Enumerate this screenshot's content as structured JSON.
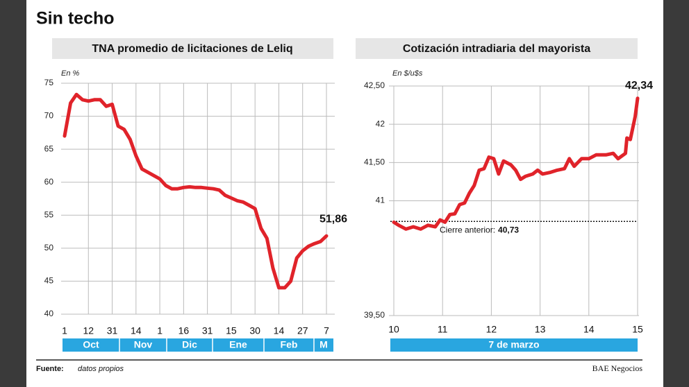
{
  "title": "Sin techo",
  "chart_data": [
    {
      "type": "line",
      "title": "TNA promedio de licitaciones de Leliq",
      "y_label": "En %",
      "categories": [
        "1",
        null,
        null,
        null,
        "12",
        null,
        null,
        null,
        "31",
        null,
        null,
        null,
        "14",
        null,
        null,
        null,
        "1",
        null,
        null,
        null,
        "16",
        null,
        null,
        null,
        "31",
        null,
        null,
        null,
        "15",
        null,
        null,
        null,
        "30",
        null,
        null,
        null,
        "14",
        null,
        null,
        null,
        "27",
        null,
        null,
        null,
        "7"
      ],
      "month_labels": [
        "Oct",
        "Nov",
        "Dic",
        "Ene",
        "Feb",
        "M"
      ],
      "series": [
        {
          "name": "TNA",
          "color": "#e0232a",
          "values": [
            67,
            72,
            73.3,
            72.5,
            72.3,
            72.5,
            72.5,
            71.5,
            71.8,
            68.5,
            68,
            66.5,
            64,
            62,
            61.5,
            61,
            60.5,
            59.5,
            59,
            59,
            59.2,
            59.3,
            59.2,
            59.2,
            59.1,
            59,
            58.8,
            58,
            57.6,
            57.2,
            57,
            56.5,
            56,
            53,
            51.5,
            47,
            44,
            44,
            45,
            48.5,
            49.6,
            50.3,
            50.7,
            51,
            51.86
          ],
          "last_value_label": "51,86"
        }
      ],
      "ylim": [
        40,
        75
      ],
      "yticks": [
        40,
        45,
        50,
        55,
        60,
        65,
        70,
        75
      ],
      "grid": true
    },
    {
      "type": "line",
      "title": "Cotización intradiaria del mayorista",
      "y_label": "En $/u$s",
      "x": [
        10.0,
        10.1,
        10.25,
        10.4,
        10.55,
        10.7,
        10.85,
        10.95,
        11.05,
        11.15,
        11.25,
        11.35,
        11.45,
        11.55,
        11.65,
        11.75,
        11.85,
        11.95,
        12.05,
        12.15,
        12.25,
        12.4,
        12.5,
        12.6,
        12.7,
        12.85,
        12.95,
        13.05,
        13.2,
        13.35,
        13.5,
        13.6,
        13.7,
        13.85,
        14.0,
        14.15,
        14.35,
        14.5,
        14.6,
        14.75,
        14.78,
        14.85,
        14.95,
        15.0
      ],
      "x_group_label": "7 de marzo",
      "series": [
        {
          "name": "Mayorista",
          "color": "#e0232a",
          "values": [
            40.72,
            40.68,
            40.63,
            40.66,
            40.63,
            40.68,
            40.66,
            40.75,
            40.72,
            40.82,
            40.83,
            40.95,
            40.97,
            41.1,
            41.2,
            41.4,
            41.42,
            41.57,
            41.55,
            41.35,
            41.52,
            41.47,
            41.4,
            41.28,
            41.32,
            41.35,
            41.4,
            41.35,
            41.37,
            41.4,
            41.42,
            41.55,
            41.45,
            41.55,
            41.55,
            41.6,
            41.6,
            41.62,
            41.55,
            41.62,
            41.82,
            41.8,
            42.1,
            42.34
          ],
          "last_value_label": "42,34"
        }
      ],
      "reference": {
        "text": "Cierre anterior:",
        "value": 40.73,
        "value_label": "40,73"
      },
      "xlim": [
        10,
        15
      ],
      "xticks": [
        10,
        11,
        12,
        13,
        14,
        15
      ],
      "ylim": [
        39.5,
        42.5
      ],
      "yticks": [
        {
          "value": 39.5,
          "label": "39,50"
        },
        41,
        {
          "value": 41.5,
          "label": "41,50"
        },
        42,
        {
          "value": 42.5,
          "label": "42,50"
        }
      ],
      "grid": true
    }
  ],
  "footer": {
    "source_label": "Fuente:",
    "source": "datos propios",
    "brand": "BAE Negocios"
  }
}
